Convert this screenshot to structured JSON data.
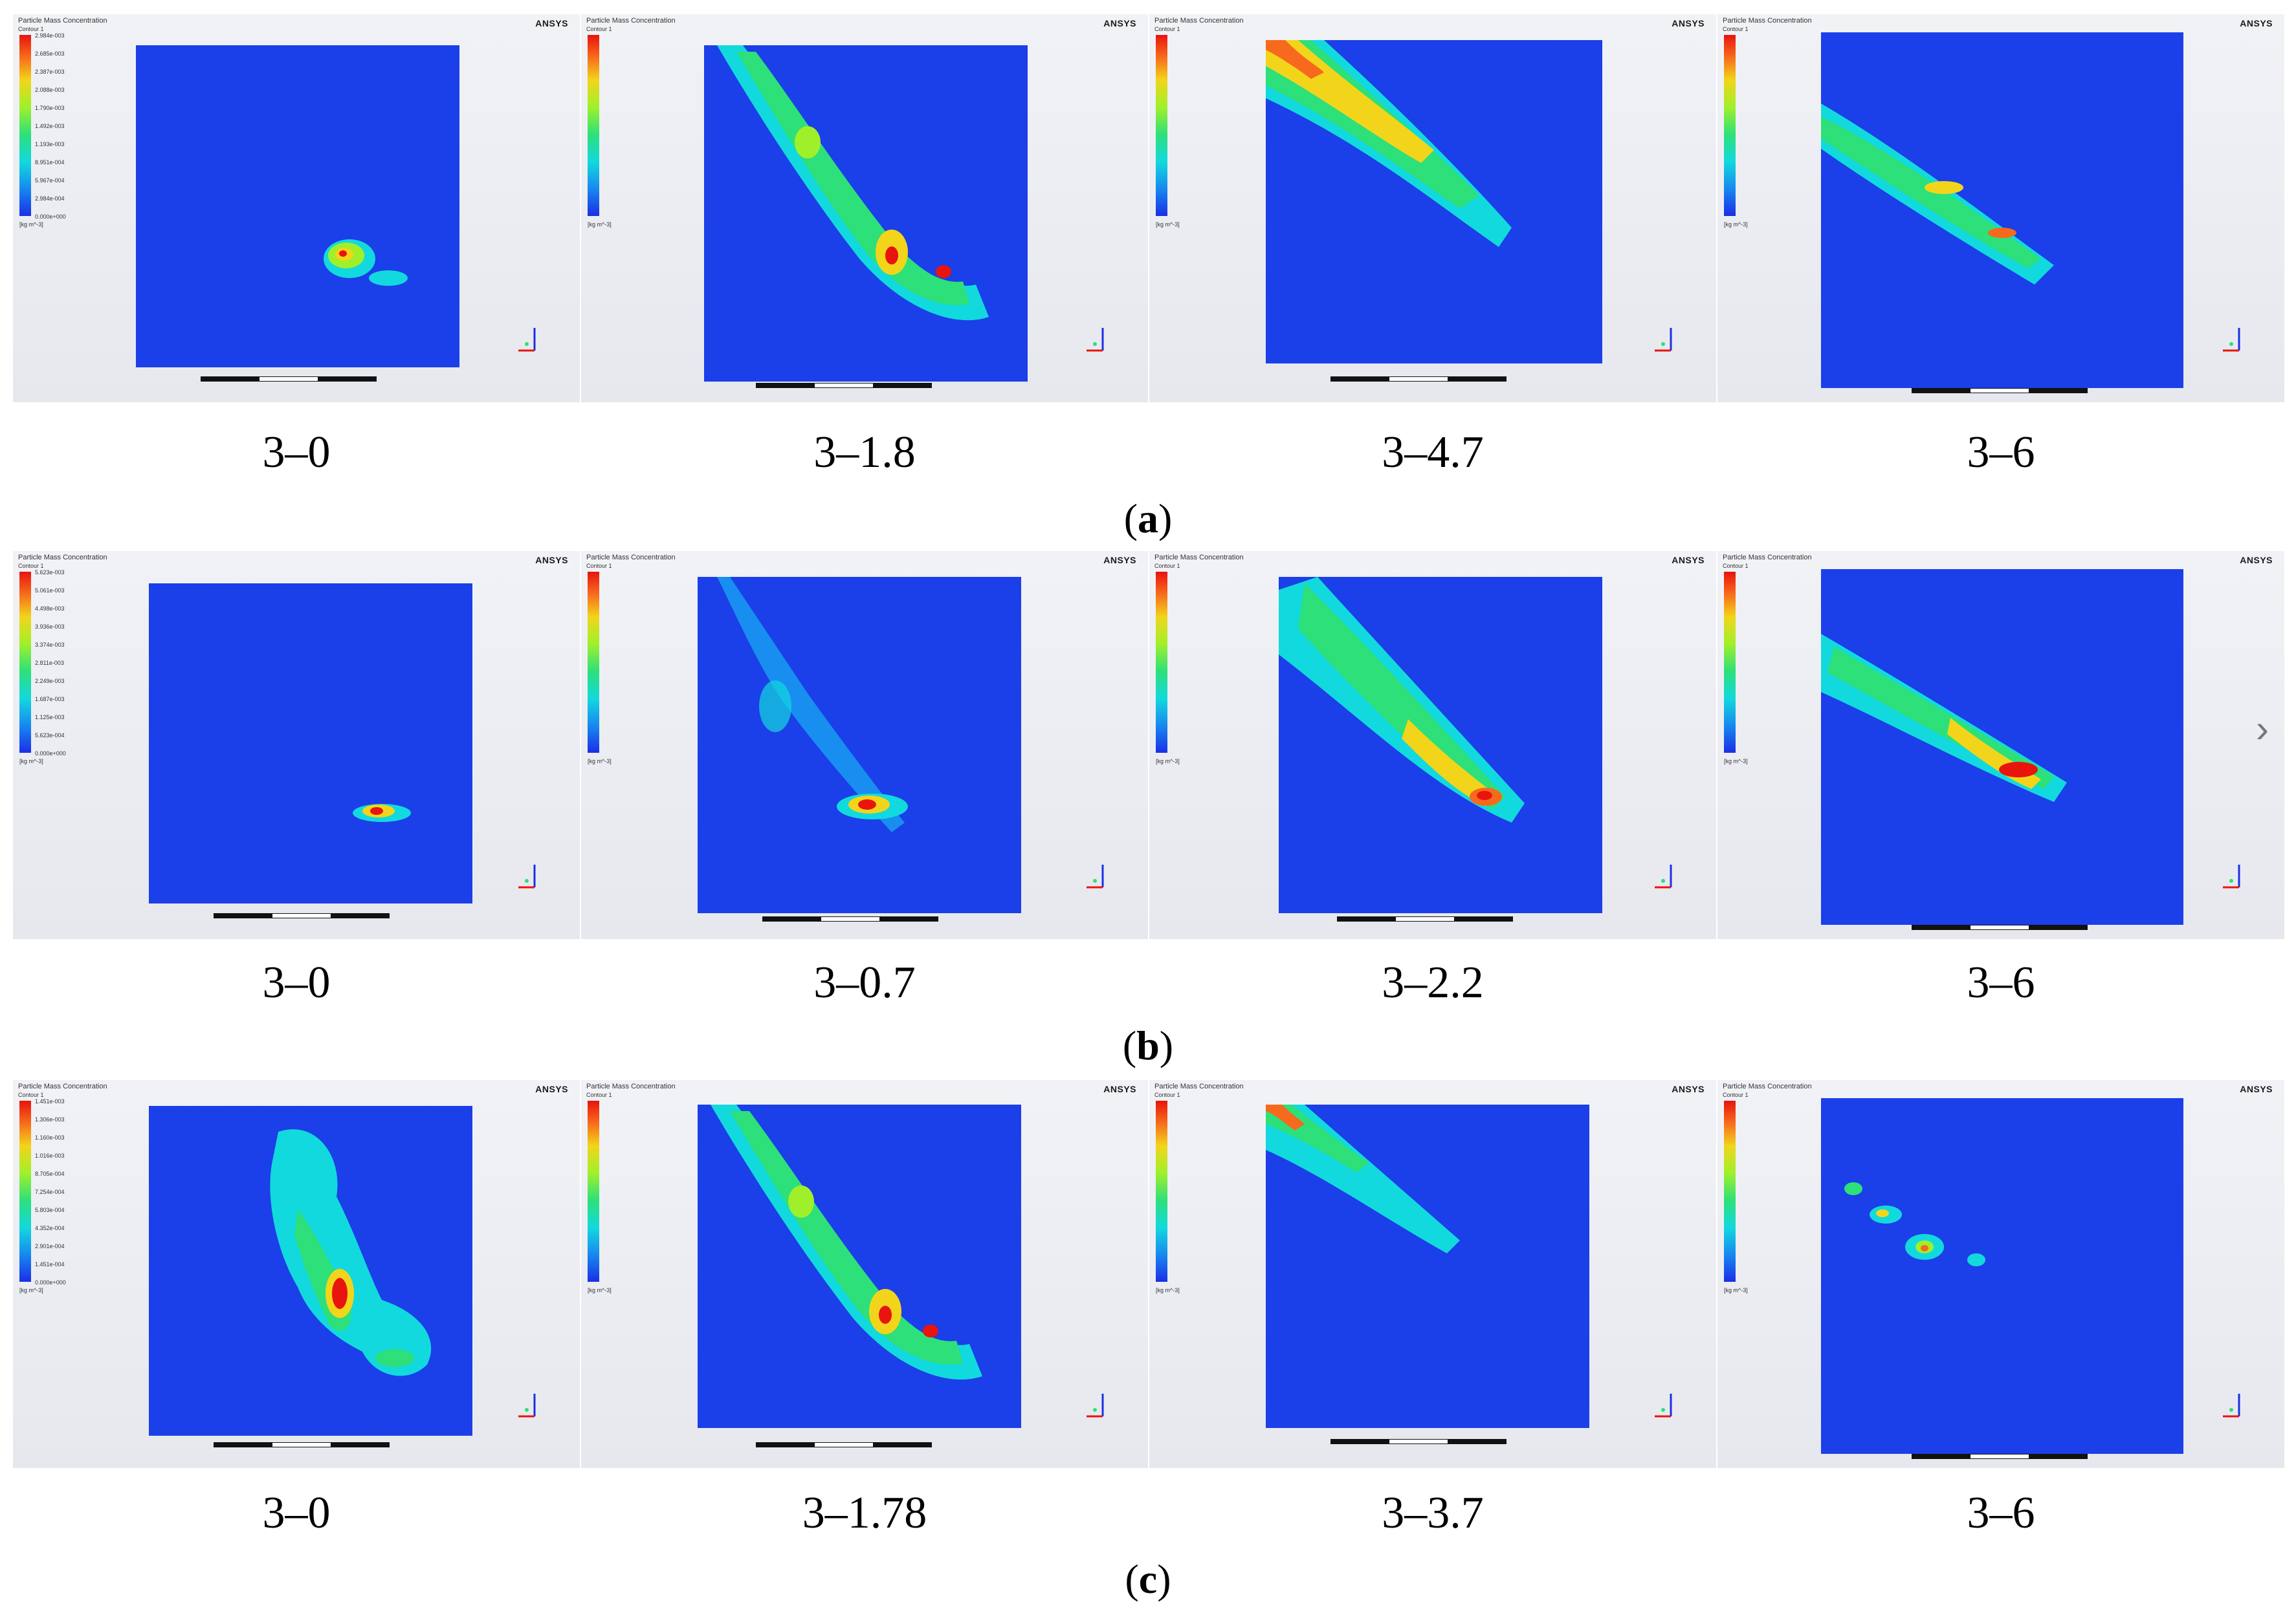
{
  "panel_text": {
    "title": "Particle Mass Concentration",
    "subtitle": "Contour 1",
    "brand": "ANSYS",
    "unit": "[kg m^-3]"
  },
  "groups": [
    {
      "caption_letter": "a",
      "panels": [
        {
          "label": "3–0"
        },
        {
          "label": "3–1.8"
        },
        {
          "label": "3–4.7"
        },
        {
          "label": "3–6"
        }
      ]
    },
    {
      "caption_letter": "b",
      "panels": [
        {
          "label": "3–0"
        },
        {
          "label": "3–0.7"
        },
        {
          "label": "3–2.2"
        },
        {
          "label": "3–6"
        }
      ]
    },
    {
      "caption_letter": "c",
      "panels": [
        {
          "label": "3–0"
        },
        {
          "label": "3–1.78"
        },
        {
          "label": "3–3.7"
        },
        {
          "label": "3–6"
        }
      ]
    }
  ],
  "legend_ticks": {
    "a0": [
      "2.984e-003",
      "2.685e-003",
      "2.387e-003",
      "2.088e-003",
      "1.790e-003",
      "1.492e-003",
      "1.193e-003",
      "8.951e-004",
      "5.967e-004",
      "2.984e-004",
      "0.000e+000"
    ],
    "b0": [
      "5.623e-003",
      "5.061e-003",
      "4.498e-003",
      "3.936e-003",
      "3.374e-003",
      "2.811e-003",
      "2.249e-003",
      "1.687e-003",
      "1.125e-003",
      "5.623e-004",
      "0.000e+000"
    ],
    "c0": [
      "1.451e-003",
      "1.306e-003",
      "1.160e-003",
      "1.016e-003",
      "8.705e-004",
      "7.254e-004",
      "5.803e-004",
      "4.352e-004",
      "2.901e-004",
      "1.451e-004",
      "0.000e+000"
    ]
  },
  "colors": {
    "domain": "#1b3fe8",
    "background": "#e8eaf0"
  }
}
